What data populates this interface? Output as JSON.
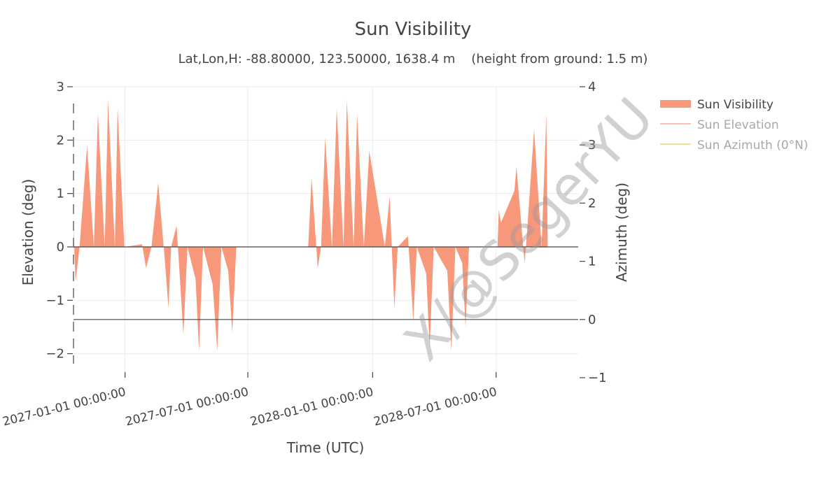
{
  "chart_data": {
    "type": "area",
    "title": "Sun Visibility",
    "subtitle": "Lat,Lon,H: -88.80000, 123.50000, 1638.4 m    (height from ground: 1.5 m)",
    "xlabel": "Time (UTC)",
    "ylabel": "Elevation (deg)",
    "y2label": "Azimuth (deg)",
    "xlim": [
      "2026-10-17",
      "2028-10-30"
    ],
    "ylim": [
      -2.45,
      3.0
    ],
    "y2lim": [
      -1,
      4
    ],
    "x_ticks": [
      "2027-01-01 00:00:00",
      "2027-07-01 00:00:00",
      "2028-01-01 00:00:00",
      "2028-07-01 00:00:00"
    ],
    "x_tick_dates": [
      "2027-01-01",
      "2027-07-01",
      "2028-01-01",
      "2028-07-01"
    ],
    "y_ticks": [
      3,
      2,
      1,
      0,
      -1,
      -2
    ],
    "y_tick_labels": [
      "3",
      "2",
      "1",
      "0",
      "−1",
      "−2"
    ],
    "y2_ticks": [
      4,
      3,
      2,
      1,
      0,
      -1
    ],
    "y2_tick_labels": [
      "4",
      "3",
      "2",
      "1",
      "0",
      "−1"
    ],
    "grid": true,
    "legend_placement": "top-right",
    "series": [
      {
        "name": "Sun Visibility",
        "kind": "filled-area",
        "color": "#f8987b",
        "note": "daily peak elevation (deg) while the sun is above the horizon, negative dips when below",
        "points": [
          [
            "2026-10-17",
            0.35
          ],
          [
            "2026-10-20",
            -0.65
          ],
          [
            "2026-10-26",
            0.0
          ],
          [
            "2026-11-06",
            1.9
          ],
          [
            "2026-11-16",
            0.0
          ],
          [
            "2026-11-22",
            2.5
          ],
          [
            "2026-12-02",
            0.0
          ],
          [
            "2026-12-07",
            2.75
          ],
          [
            "2026-12-17",
            0.0
          ],
          [
            "2026-12-21",
            2.6
          ],
          [
            "2026-12-31",
            0.0
          ],
          [
            "2027-01-26",
            0.05
          ],
          [
            "2027-02-01",
            -0.4
          ],
          [
            "2027-02-09",
            0.0
          ],
          [
            "2027-02-19",
            1.2
          ],
          [
            "2027-03-01",
            -0.3
          ],
          [
            "2027-03-06",
            -1.15
          ],
          [
            "2027-03-10",
            0.0
          ],
          [
            "2027-03-18",
            0.4
          ],
          [
            "2027-03-28",
            -1.65
          ],
          [
            "2027-04-03",
            0.0
          ],
          [
            "2027-04-15",
            -0.6
          ],
          [
            "2027-04-20",
            -1.95
          ],
          [
            "2027-04-26",
            0.0
          ],
          [
            "2027-05-10",
            -0.7
          ],
          [
            "2027-05-17",
            -1.95
          ],
          [
            "2027-05-23",
            0.0
          ],
          [
            "2027-06-02",
            -0.45
          ],
          [
            "2027-06-08",
            -1.6
          ],
          [
            "2027-06-14",
            0.0
          ],
          [
            "2027-09-28",
            0.0
          ],
          [
            "2027-10-03",
            1.3
          ],
          [
            "2027-10-12",
            -0.4
          ],
          [
            "2027-10-17",
            0.0
          ],
          [
            "2027-10-23",
            2.05
          ],
          [
            "2027-11-02",
            0.0
          ],
          [
            "2027-11-09",
            2.6
          ],
          [
            "2027-11-19",
            0.0
          ],
          [
            "2027-11-24",
            2.75
          ],
          [
            "2027-12-04",
            0.0
          ],
          [
            "2027-12-09",
            2.5
          ],
          [
            "2027-12-19",
            0.0
          ],
          [
            "2027-12-27",
            1.8
          ],
          [
            "2028-01-19",
            0.0
          ],
          [
            "2028-01-26",
            0.95
          ],
          [
            "2028-02-02",
            -1.15
          ],
          [
            "2028-02-07",
            0.0
          ],
          [
            "2028-02-22",
            0.2
          ],
          [
            "2028-03-01",
            -1.4
          ],
          [
            "2028-03-06",
            0.0
          ],
          [
            "2028-03-20",
            -0.5
          ],
          [
            "2028-03-25",
            -1.9
          ],
          [
            "2028-03-31",
            0.0
          ],
          [
            "2028-04-20",
            -0.45
          ],
          [
            "2028-04-26",
            -1.95
          ],
          [
            "2028-05-02",
            0.0
          ],
          [
            "2028-05-12",
            -0.3
          ],
          [
            "2028-05-17",
            -1.5
          ],
          [
            "2028-05-22",
            0.0
          ],
          [
            "2028-07-03",
            0.0
          ],
          [
            "2028-07-05",
            0.7
          ],
          [
            "2028-07-08",
            0.45
          ],
          [
            "2028-07-28",
            1.05
          ],
          [
            "2028-07-31",
            1.5
          ],
          [
            "2028-08-12",
            -0.3
          ],
          [
            "2028-08-14",
            0.0
          ],
          [
            "2028-08-26",
            2.2
          ],
          [
            "2028-09-06",
            0.0
          ],
          [
            "2028-09-13",
            2.5
          ],
          [
            "2028-09-15",
            0.0
          ]
        ]
      },
      {
        "name": "Sun Elevation",
        "kind": "line",
        "color": "#f8987b",
        "visible": false
      },
      {
        "name": "Sun Azimuth (0°N)",
        "kind": "line",
        "color": "#f7dc9c",
        "visible": false
      }
    ],
    "zero_lines": {
      "elevation": 0,
      "azimuth": 0
    }
  },
  "watermark": "X/@SegerYU"
}
